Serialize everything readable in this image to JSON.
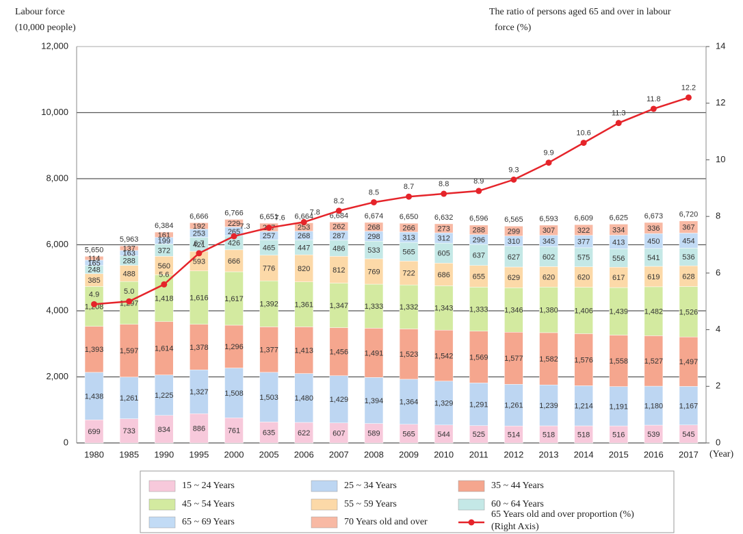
{
  "chart_data": {
    "type": "stacked_bar_line",
    "ylabel": [
      "Labour force",
      "(10,000 people)"
    ],
    "y2label": [
      "The ratio of persons aged 65 and over in labour",
      "force (%)"
    ],
    "xlabel": "(Year)",
    "categories": [
      "1980",
      "1985",
      "1990",
      "1995",
      "2000",
      "2005",
      "2006",
      "2007",
      "2008",
      "2009",
      "2010",
      "2011",
      "2012",
      "2013",
      "2014",
      "2015",
      "2016",
      "2017"
    ],
    "series": [
      {
        "name": "15 ~ 24 Years",
        "color": "#f7c9db",
        "values": [
          699,
          733,
          834,
          886,
          761,
          635,
          622,
          607,
          589,
          565,
          544,
          525,
          514,
          518,
          518,
          516,
          539,
          545
        ]
      },
      {
        "name": "25 ~ 34 Years",
        "color": "#bdd6f2",
        "values": [
          1438,
          1261,
          1225,
          1327,
          1508,
          1503,
          1480,
          1429,
          1394,
          1364,
          1329,
          1291,
          1261,
          1239,
          1214,
          1191,
          1180,
          1167
        ],
        "value_labels": [
          "1,438",
          "1,261",
          "1,225",
          "1,327",
          "1,508",
          "1,503",
          "1,480",
          "1,429",
          "1,394",
          "1,364",
          "1,329",
          "1,291",
          "1,261",
          "1,239",
          "1,214",
          "1,191",
          "1,180",
          "1,167"
        ]
      },
      {
        "name": "35 ~ 44 Years",
        "color": "#f5a68e",
        "values": [
          1393,
          1597,
          1614,
          1378,
          1296,
          1377,
          1413,
          1456,
          1491,
          1523,
          1542,
          1569,
          1577,
          1582,
          1576,
          1558,
          1527,
          1497
        ],
        "value_labels": [
          "1,393",
          "1,597",
          "1,614",
          "1,378",
          "1,296",
          "1,377",
          "1,413",
          "1,456",
          "1,491",
          "1,523",
          "1,542",
          "1,569",
          "1,577",
          "1,582",
          "1,576",
          "1,558",
          "1,527",
          "1,497"
        ]
      },
      {
        "name": "45 ~ 54 Years",
        "color": "#d3eaa0",
        "values": [
          1208,
          1297,
          1418,
          1616,
          1617,
          1392,
          1361,
          1347,
          1333,
          1332,
          1343,
          1333,
          1346,
          1380,
          1406,
          1439,
          1482,
          1526
        ],
        "value_labels": [
          "1,208",
          "1,297",
          "1,418",
          "1,616",
          "1,617",
          "1,392",
          "1,361",
          "1,347",
          "1,333",
          "1,332",
          "1,343",
          "1,333",
          "1,346",
          "1,380",
          "1,406",
          "1,439",
          "1,482",
          "1,526"
        ]
      },
      {
        "name": "55 ~ 59 Years",
        "color": "#fcd9a8",
        "values": [
          385,
          488,
          560,
          593,
          666,
          776,
          820,
          812,
          769,
          722,
          686,
          655,
          629,
          620,
          620,
          617,
          619,
          628
        ]
      },
      {
        "name": "60 ~ 64 Years",
        "color": "#c4e8e6",
        "values": [
          248,
          288,
          372,
          421,
          426,
          465,
          447,
          486,
          533,
          565,
          605,
          637,
          627,
          602,
          575,
          556,
          541,
          536
        ]
      },
      {
        "name": "65 ~ 69 Years",
        "color": "#c2dbf5",
        "values": [
          165,
          163,
          199,
          253,
          265,
          257,
          268,
          287,
          298,
          313,
          312,
          296,
          310,
          345,
          377,
          413,
          450,
          454
        ]
      },
      {
        "name": "70 Years old and over",
        "color": "#f8b9a4",
        "values": [
          114,
          137,
          161,
          192,
          229,
          247,
          253,
          262,
          268,
          266,
          273,
          288,
          299,
          307,
          322,
          334,
          336,
          367
        ]
      }
    ],
    "totals": [
      5650,
      5963,
      6384,
      6666,
      6766,
      6651,
      6664,
      6684,
      6674,
      6650,
      6632,
      6596,
      6565,
      6593,
      6609,
      6625,
      6673,
      6720
    ],
    "totals_labels": [
      "5,650",
      "5,963",
      "6,384",
      "6,666",
      "6,766",
      "6,651",
      "6,664",
      "6,684",
      "6,674",
      "6,650",
      "6,632",
      "6,596",
      "6,565",
      "6,593",
      "6,609",
      "6,625",
      "6,673",
      "6,720"
    ],
    "line": {
      "name": "65 Years old and over proportion (%)",
      "legend_note": "(Right Axis)",
      "color": "#e5242a",
      "axis": "y2",
      "values": [
        4.9,
        5.0,
        5.6,
        6.7,
        7.3,
        7.6,
        7.8,
        8.2,
        8.5,
        8.7,
        8.8,
        8.9,
        9.3,
        9.9,
        10.6,
        11.3,
        11.8,
        12.2
      ],
      "value_labels": [
        "4.9",
        "5.0",
        "5.6",
        "6.7",
        "7.3",
        "7.6",
        "7.8",
        "8.2",
        "8.5",
        "8.7",
        "8.8",
        "8.9",
        "9.3",
        "9.9",
        "10.6",
        "11.3",
        "11.8",
        "12.2"
      ]
    },
    "ylim": [
      0,
      12000
    ],
    "yticks": [
      0,
      {
        "value": 2000,
        "label": "2,000"
      },
      {
        "value": 4000,
        "label": "4,000"
      },
      {
        "value": 6000,
        "label": "6,000"
      },
      {
        "value": 8000,
        "label": "8,000"
      },
      {
        "value": 10000,
        "label": "10,000"
      },
      {
        "value": 12000,
        "label": "12,000"
      }
    ],
    "y2lim": [
      0,
      14
    ],
    "y2ticks": [
      0,
      2,
      4,
      6,
      8,
      10,
      12,
      14
    ],
    "grid": true
  }
}
